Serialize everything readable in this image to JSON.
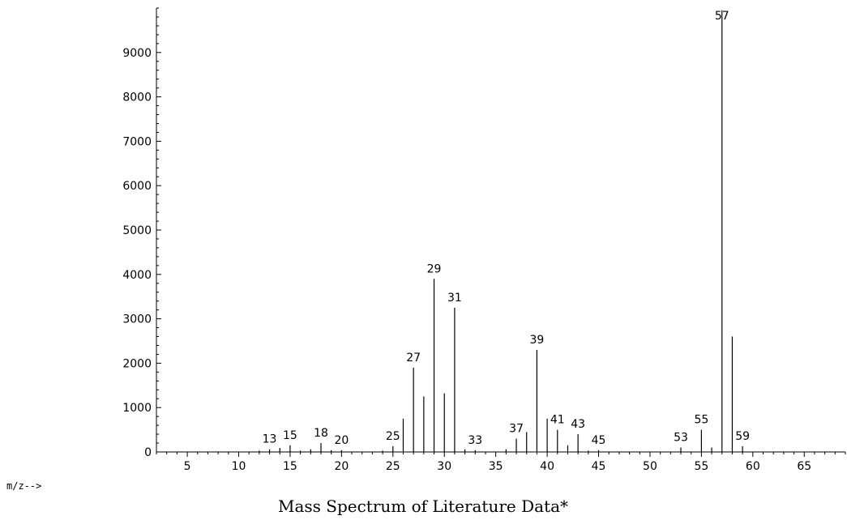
{
  "chart_data": {
    "type": "bar",
    "title": "Mass Spectrum of Literature Data*",
    "xlabel": "m/z-->",
    "ylabel": "",
    "xlim": [
      2,
      69
    ],
    "ylim": [
      0,
      10000
    ],
    "x_ticks": [
      5,
      10,
      15,
      20,
      25,
      30,
      35,
      40,
      45,
      50,
      55,
      60,
      65
    ],
    "y_ticks": [
      0,
      1000,
      2000,
      3000,
      4000,
      5000,
      6000,
      7000,
      8000,
      9000
    ],
    "grid": false,
    "series": [
      {
        "x": [
          12,
          13,
          14,
          15,
          16,
          17,
          18,
          19,
          20,
          24,
          25,
          26,
          27,
          28,
          29,
          30,
          31,
          32,
          33,
          36,
          37,
          38,
          39,
          40,
          41,
          42,
          43,
          44,
          45,
          53,
          55,
          56,
          57,
          58,
          59
        ],
        "values": [
          30,
          60,
          90,
          150,
          30,
          60,
          200,
          40,
          40,
          30,
          130,
          750,
          1900,
          1250,
          3900,
          1320,
          3250,
          60,
          40,
          60,
          300,
          450,
          2300,
          750,
          500,
          150,
          400,
          30,
          40,
          100,
          500,
          100,
          9950,
          2600,
          130
        ]
      }
    ],
    "peak_labels": [
      {
        "x": 13,
        "y": 60,
        "text": "13"
      },
      {
        "x": 15,
        "y": 150,
        "text": "15"
      },
      {
        "x": 18,
        "y": 200,
        "text": "18"
      },
      {
        "x": 20,
        "y": 40,
        "text": "20"
      },
      {
        "x": 25,
        "y": 130,
        "text": "25"
      },
      {
        "x": 27,
        "y": 1900,
        "text": "27"
      },
      {
        "x": 29,
        "y": 3900,
        "text": "29"
      },
      {
        "x": 31,
        "y": 3250,
        "text": "31"
      },
      {
        "x": 33,
        "y": 40,
        "text": "33"
      },
      {
        "x": 37,
        "y": 300,
        "text": "37"
      },
      {
        "x": 39,
        "y": 2300,
        "text": "39"
      },
      {
        "x": 41,
        "y": 500,
        "text": "41"
      },
      {
        "x": 43,
        "y": 400,
        "text": "43"
      },
      {
        "x": 45,
        "y": 40,
        "text": "45"
      },
      {
        "x": 53,
        "y": 100,
        "text": "53"
      },
      {
        "x": 55,
        "y": 500,
        "text": "55"
      },
      {
        "x": 57,
        "y": 9950,
        "text": "57"
      },
      {
        "x": 59,
        "y": 130,
        "text": "59"
      }
    ]
  }
}
